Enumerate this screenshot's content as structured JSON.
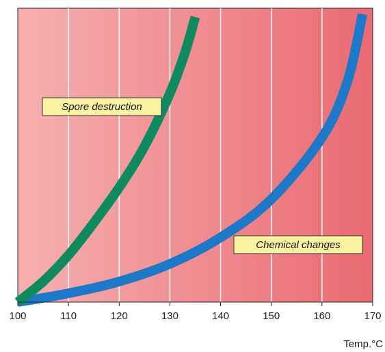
{
  "chart_data": {
    "type": "line",
    "title": "",
    "xlabel": "Temp.°C",
    "ylabel": "",
    "xlim": [
      100,
      170
    ],
    "x_ticks": [
      100,
      110,
      120,
      130,
      140,
      150,
      160,
      170
    ],
    "grid": "vertical",
    "background": {
      "from": "#f6b0b0",
      "to": "#e96a72"
    },
    "series": [
      {
        "name": "Spore destruction",
        "color": "#0f8a5f",
        "x": [
          100,
          105,
          110,
          115,
          120,
          125,
          130,
          133,
          135
        ],
        "y": [
          0,
          0.07,
          0.16,
          0.27,
          0.39,
          0.53,
          0.71,
          0.85,
          0.97
        ]
      },
      {
        "name": "Chemical changes",
        "color": "#1e78c8",
        "x": [
          100,
          110,
          120,
          130,
          140,
          150,
          160,
          165,
          168
        ],
        "y": [
          0,
          0.03,
          0.07,
          0.13,
          0.22,
          0.35,
          0.56,
          0.75,
          0.98
        ]
      }
    ],
    "annotations": [
      {
        "text": "Spore destruction",
        "series": 0
      },
      {
        "text": "Chemical changes",
        "series": 1
      }
    ]
  }
}
